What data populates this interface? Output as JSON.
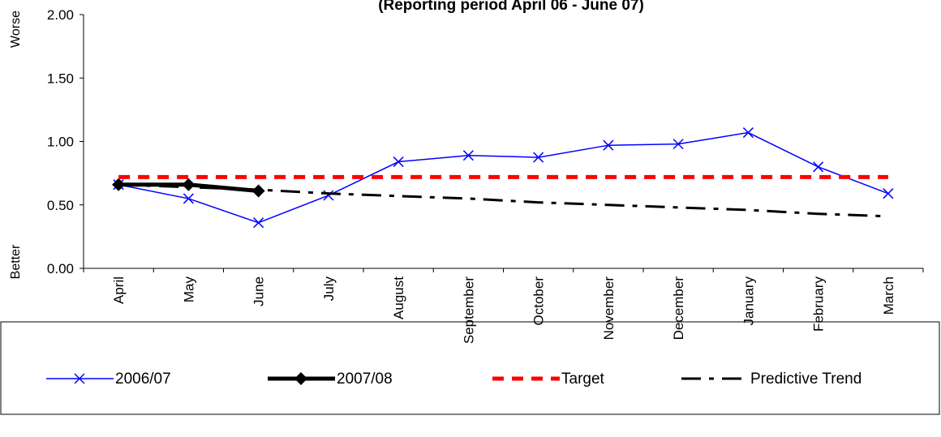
{
  "chart_data": {
    "type": "line",
    "title": "(Reporting period  April 06 - June 07)",
    "y_axis_labels": {
      "top": "Worse",
      "bottom": "Better"
    },
    "categories": [
      "April",
      "May",
      "June",
      "July",
      "August",
      "September",
      "October",
      "November",
      "December",
      "January",
      "February",
      "March"
    ],
    "series": [
      {
        "name": "2006/07",
        "color": "#0000ff",
        "style": "solid",
        "marker": "x",
        "values": [
          0.66,
          0.55,
          0.36,
          0.575,
          0.84,
          0.89,
          0.875,
          0.97,
          0.98,
          1.07,
          0.8,
          0.59
        ]
      },
      {
        "name": "2007/08",
        "color": "#000000",
        "style": "bold",
        "marker": "diamond",
        "values": [
          0.66,
          0.66,
          0.61,
          null,
          null,
          null,
          null,
          null,
          null,
          null,
          null,
          null
        ]
      },
      {
        "name": "Target",
        "color": "#ff0000",
        "style": "dashed",
        "marker": "none",
        "values": [
          0.72,
          0.72,
          0.72,
          0.72,
          0.72,
          0.72,
          0.72,
          0.72,
          0.72,
          0.72,
          0.72,
          0.72
        ]
      },
      {
        "name": "Predictive Trend",
        "color": "#000000",
        "style": "dash-dot",
        "marker": "none",
        "values": [
          0.66,
          0.64,
          0.62,
          0.59,
          0.57,
          0.55,
          0.52,
          0.5,
          0.48,
          0.46,
          0.43,
          0.41
        ]
      }
    ],
    "ylim": [
      0,
      2
    ],
    "yticks": [
      {
        "value": 0,
        "label": "0.00"
      },
      {
        "value": 0.5,
        "label": "0.50"
      },
      {
        "value": 1,
        "label": "1.00"
      },
      {
        "value": 1.5,
        "label": "1.50"
      },
      {
        "value": 2,
        "label": "2.00"
      }
    ],
    "grid": false,
    "legend": "bottom"
  }
}
